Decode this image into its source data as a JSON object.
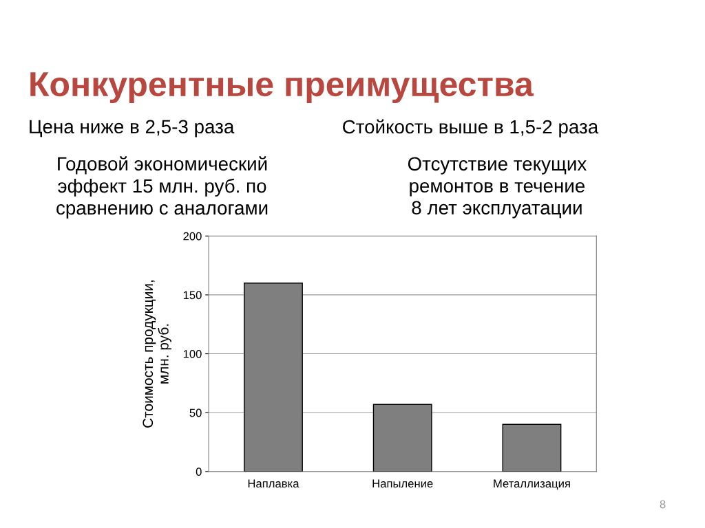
{
  "chart_data": {
    "type": "bar",
    "title": "Конкурентные преимущества",
    "categories": [
      "Наплавка",
      "Напыление",
      "Металлизация"
    ],
    "values": [
      160,
      57,
      40
    ],
    "color": "#7f7f7f",
    "ylabel": "Стоимость продукции,\nмлн. руб.",
    "ylim": [
      0,
      200
    ],
    "yticks": [
      0,
      50,
      100,
      150,
      200
    ],
    "grid": "y",
    "annotations": [
      "Цена ниже в 2,5-3 раза",
      "Стойкость выше в 1,5-2 раза",
      "Годовой экономический\nэффект 15 млн. руб. по\nсравнению с аналогами",
      "Отсутствие текущих\nремонтов в течение\n8 лет эксплуатации",
      "8"
    ]
  }
}
